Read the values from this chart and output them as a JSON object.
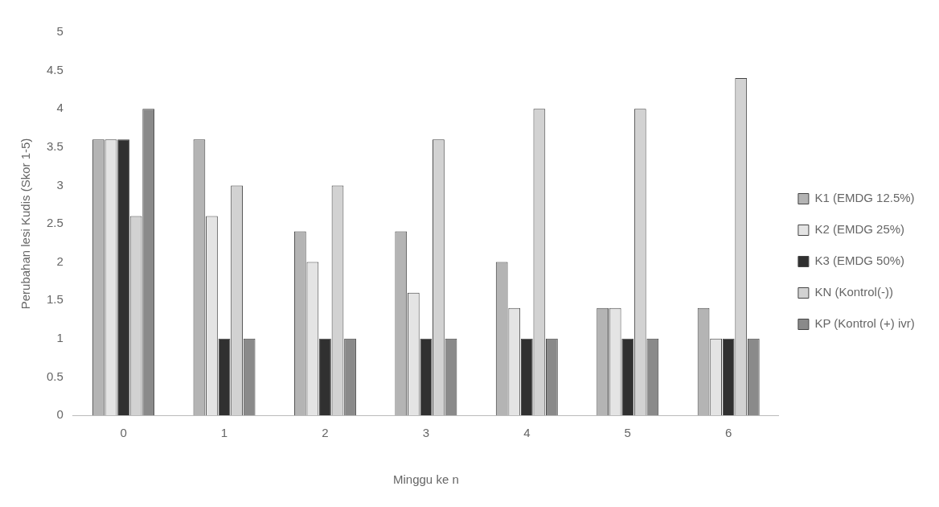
{
  "chart_data": {
    "type": "bar",
    "xlabel": "Minggu ke n",
    "ylabel": "Perubahan lesi Kudis (Skor 1-5)",
    "categories": [
      "0",
      "1",
      "2",
      "3",
      "4",
      "5",
      "6"
    ],
    "series": [
      {
        "name": "K1 (EMDG 12.5%)",
        "color": "#b4b4b4",
        "values": [
          3.6,
          3.6,
          2.4,
          2.4,
          2.0,
          1.4,
          1.4
        ]
      },
      {
        "name": "K2 (EMDG 25%)",
        "color": "#e4e4e4",
        "values": [
          3.6,
          2.6,
          2.0,
          1.6,
          1.4,
          1.4,
          1.0
        ]
      },
      {
        "name": "K3 (EMDG 50%)",
        "color": "#303030",
        "values": [
          3.6,
          1.0,
          1.0,
          1.0,
          1.0,
          1.0,
          1.0
        ]
      },
      {
        "name": "KN (Kontrol(-))",
        "color": "#d2d2d2",
        "values": [
          2.6,
          3.0,
          3.0,
          3.6,
          4.0,
          4.0,
          4.4
        ]
      },
      {
        "name": "KP (Kontrol (+) ivr)",
        "color": "#8a8a8a",
        "values": [
          4.0,
          1.0,
          1.0,
          1.0,
          1.0,
          1.0,
          1.0
        ]
      }
    ],
    "ylim": [
      0,
      5
    ],
    "yticks": [
      0,
      0.5,
      1,
      1.5,
      2,
      2.5,
      3,
      3.5,
      4,
      4.5,
      5
    ],
    "grid": false,
    "legend": "right"
  }
}
